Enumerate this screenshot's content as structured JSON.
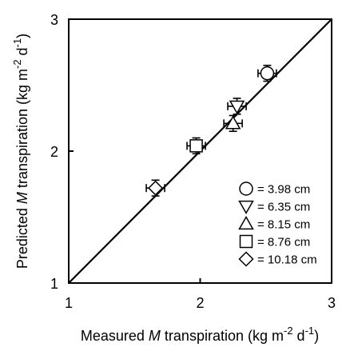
{
  "chart_data": {
    "type": "scatter",
    "xlim": [
      1,
      3
    ],
    "ylim": [
      1,
      3
    ],
    "x_ticks": [
      "1",
      "2",
      "3"
    ],
    "y_ticks": [
      "1",
      "2",
      "3"
    ],
    "xlabel": {
      "prefix": "Measured ",
      "italic": "M",
      "middle": " transpiration (kg m",
      "sup1": "-2",
      "middle2": " d",
      "sup2": "-1",
      "suffix": ")"
    },
    "ylabel": {
      "prefix": "Predicted ",
      "italic": "M",
      "middle": " transpiration (kg m",
      "sup1": "-2",
      "middle2": " d",
      "sup2": "-1",
      "suffix": ")"
    },
    "reference_line": {
      "type": "1:1",
      "from": [
        1,
        1
      ],
      "to": [
        3,
        3
      ]
    },
    "legend_position": "bottom-right",
    "series": [
      {
        "name": "= 3.98 cm",
        "marker": "circle",
        "x": 2.51,
        "y": 2.59,
        "xerr": 0.07,
        "yerr": 0.06
      },
      {
        "name": "= 6.35 cm",
        "marker": "triangle-down",
        "x": 2.28,
        "y": 2.34,
        "xerr": 0.07,
        "yerr": 0.06
      },
      {
        "name": "= 8.15 cm",
        "marker": "triangle-up",
        "x": 2.25,
        "y": 2.21,
        "xerr": 0.07,
        "yerr": 0.06
      },
      {
        "name": "= 8.76 cm",
        "marker": "square",
        "x": 1.97,
        "y": 2.04,
        "xerr": 0.07,
        "yerr": 0.06
      },
      {
        "name": "= 10.18 cm",
        "marker": "diamond",
        "x": 1.66,
        "y": 1.72,
        "xerr": 0.07,
        "yerr": 0.06
      }
    ]
  }
}
